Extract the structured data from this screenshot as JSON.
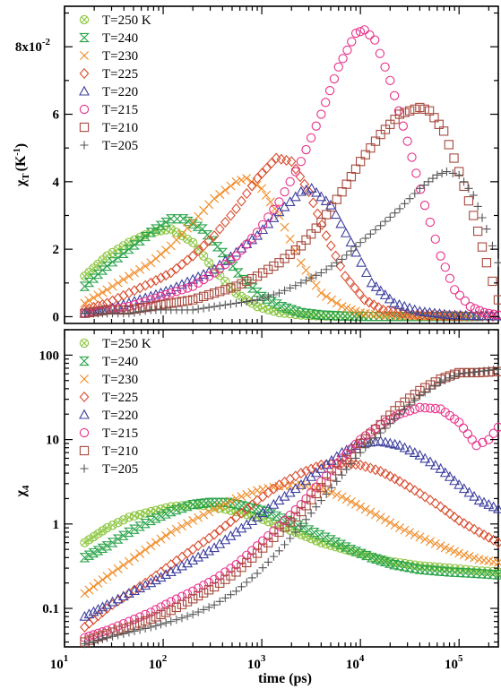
{
  "chart_data": [
    {
      "type": "scatter",
      "title": "",
      "xlabel": "",
      "ylabel_main": "χ",
      "ylabel_sub": "T",
      "ylabel_unit": "(K",
      "ylabel_unit_sup": "-1",
      "ylabel_unit_close": ")",
      "xscale": "log",
      "xlim": [
        10,
        250000
      ],
      "yscale": "linear",
      "ylim": [
        -0.002,
        0.092
      ],
      "x_ticks": [
        {
          "value": 10,
          "base": "10",
          "exp": "1"
        },
        {
          "value": 100,
          "base": "10",
          "exp": "2"
        },
        {
          "value": 1000,
          "base": "10",
          "exp": "3"
        },
        {
          "value": 10000,
          "base": "10",
          "exp": "4"
        },
        {
          "value": 100000,
          "base": "10",
          "exp": "5"
        }
      ],
      "x_tick_labels_shown": false,
      "y_ticks": [
        {
          "value": 0,
          "label": "0"
        },
        {
          "value": 0.02,
          "label": "2"
        },
        {
          "value": 0.04,
          "label": "4"
        },
        {
          "value": 0.06,
          "label": "6"
        },
        {
          "value": 0.08,
          "label": "8x10",
          "sup": "-2"
        }
      ],
      "legend_position": "top-left",
      "series": [
        {
          "name": "T=250 K",
          "marker": "circle-x",
          "color": "#8cc63f",
          "x": [
            16,
            27,
            45,
            75,
            120,
            200,
            330,
            550,
            900,
            1500,
            2500,
            4000,
            7000,
            12000,
            20000
          ],
          "y": [
            0.012,
            0.018,
            0.022,
            0.025,
            0.026,
            0.022,
            0.014,
            0.007,
            0.003,
            0.0012,
            0.0005,
            0.0002,
            0.0001,
            0.0001,
            0.0001
          ]
        },
        {
          "name": "T=240",
          "marker": "hourglass",
          "color": "#2aa44a",
          "x": [
            16,
            27,
            45,
            75,
            120,
            160,
            250,
            400,
            650,
            1000,
            1600,
            2500,
            4000,
            7000,
            12000,
            20000,
            40000,
            80000,
            150000
          ],
          "y": [
            0.009,
            0.015,
            0.02,
            0.025,
            0.029,
            0.029,
            0.026,
            0.019,
            0.011,
            0.006,
            0.003,
            0.0012,
            0.0005,
            0.0002,
            0.0001,
            0.0001,
            0.0001,
            0.0001,
            0.0001
          ]
        },
        {
          "name": "T=230",
          "marker": "x",
          "color": "#f08a24",
          "x": [
            16,
            27,
            45,
            75,
            120,
            200,
            330,
            550,
            700,
            1000,
            1500,
            2500,
            4000,
            6500,
            10000,
            16000,
            30000,
            60000,
            120000
          ],
          "y": [
            0.004,
            0.008,
            0.012,
            0.016,
            0.021,
            0.028,
            0.035,
            0.04,
            0.041,
            0.038,
            0.03,
            0.016,
            0.007,
            0.003,
            0.0012,
            0.0005,
            0.0002,
            0.0001,
            0.0001
          ]
        },
        {
          "name": "T=225",
          "marker": "diamond",
          "color": "#d94c2e",
          "x": [
            16,
            27,
            45,
            75,
            120,
            200,
            330,
            550,
            900,
            1400,
            2000,
            3000,
            4500,
            7000,
            11000,
            17000,
            30000,
            60000,
            120000,
            220000
          ],
          "y": [
            0.002,
            0.004,
            0.007,
            0.01,
            0.013,
            0.018,
            0.024,
            0.032,
            0.041,
            0.047,
            0.046,
            0.037,
            0.024,
            0.012,
            0.005,
            0.002,
            0.0008,
            0.0003,
            0.0001,
            0.0001
          ]
        },
        {
          "name": "T=220",
          "marker": "triangle",
          "color": "#3d3f9e",
          "x": [
            16,
            27,
            45,
            75,
            120,
            200,
            330,
            550,
            900,
            1500,
            2500,
            3200,
            5000,
            8000,
            13000,
            22000,
            40000,
            80000,
            150000,
            240000
          ],
          "y": [
            0.001,
            0.002,
            0.004,
            0.006,
            0.008,
            0.011,
            0.014,
            0.019,
            0.024,
            0.031,
            0.037,
            0.038,
            0.033,
            0.022,
            0.01,
            0.004,
            0.0015,
            0.0005,
            0.0002,
            0.0001
          ]
        },
        {
          "name": "T=215",
          "marker": "circle",
          "color": "#e8308a",
          "x": [
            16,
            27,
            45,
            75,
            120,
            200,
            330,
            550,
            900,
            1500,
            2500,
            4000,
            6000,
            9000,
            11000,
            14000,
            20000,
            30000,
            45000,
            65000,
            90000,
            130000,
            180000,
            250000
          ],
          "y": [
            0.001,
            0.002,
            0.003,
            0.005,
            0.007,
            0.009,
            0.013,
            0.018,
            0.025,
            0.034,
            0.046,
            0.06,
            0.074,
            0.084,
            0.085,
            0.082,
            0.07,
            0.052,
            0.033,
            0.018,
            0.008,
            0.003,
            0.0012,
            0.0005
          ]
        },
        {
          "name": "T=210",
          "marker": "square",
          "color": "#a8493d",
          "x": [
            16,
            27,
            45,
            75,
            120,
            200,
            330,
            550,
            900,
            1500,
            2500,
            4000,
            6500,
            10000,
            16000,
            25000,
            40000,
            50000,
            70000,
            100000,
            140000,
            190000,
            250000
          ],
          "y": [
            0.001,
            0.002,
            0.002,
            0.003,
            0.004,
            0.005,
            0.007,
            0.009,
            0.012,
            0.016,
            0.021,
            0.028,
            0.037,
            0.046,
            0.054,
            0.06,
            0.062,
            0.061,
            0.055,
            0.043,
            0.03,
            0.016,
            0.005
          ]
        },
        {
          "name": "T=205",
          "marker": "plus",
          "color": "#555555",
          "x": [
            16,
            27,
            45,
            75,
            120,
            200,
            330,
            550,
            900,
            1500,
            2500,
            4000,
            6500,
            10000,
            16000,
            25000,
            40000,
            60000,
            75000,
            100000,
            140000,
            190000,
            250000
          ],
          "y": [
            0.001,
            0.001,
            0.001,
            0.002,
            0.002,
            0.002,
            0.003,
            0.004,
            0.005,
            0.007,
            0.01,
            0.013,
            0.017,
            0.022,
            0.027,
            0.032,
            0.038,
            0.042,
            0.043,
            0.042,
            0.036,
            0.026,
            0.016
          ]
        }
      ]
    },
    {
      "type": "scatter",
      "title": "",
      "xlabel": "time (ps)",
      "ylabel_main": "χ",
      "ylabel_sub": "4",
      "xscale": "log",
      "xlim": [
        10,
        250000
      ],
      "yscale": "log",
      "ylim": [
        0.035,
        200
      ],
      "x_ticks": [
        {
          "value": 10,
          "base": "10",
          "exp": "1"
        },
        {
          "value": 100,
          "base": "10",
          "exp": "2"
        },
        {
          "value": 1000,
          "base": "10",
          "exp": "3"
        },
        {
          "value": 10000,
          "base": "10",
          "exp": "4"
        },
        {
          "value": 100000,
          "base": "10",
          "exp": "5"
        }
      ],
      "x_tick_labels_shown": true,
      "y_ticks": [
        {
          "value": 0.1,
          "label": "0.1"
        },
        {
          "value": 1,
          "label": "1"
        },
        {
          "value": 10,
          "label": "10"
        },
        {
          "value": 100,
          "label": "100"
        }
      ],
      "legend_position": "top-left",
      "series": [
        {
          "name": "T=250 K",
          "marker": "circle-x",
          "color": "#8cc63f",
          "x": [
            16,
            27,
            45,
            75,
            120,
            200,
            330,
            550,
            900,
            1500,
            2500,
            4000,
            7000,
            12000,
            20000,
            40000,
            80000,
            150000,
            250000
          ],
          "y": [
            0.6,
            0.9,
            1.2,
            1.4,
            1.6,
            1.7,
            1.6,
            1.4,
            1.2,
            0.95,
            0.75,
            0.6,
            0.5,
            0.42,
            0.36,
            0.32,
            0.3,
            0.28,
            0.27
          ]
        },
        {
          "name": "T=240",
          "marker": "hourglass",
          "color": "#2aa44a",
          "x": [
            16,
            27,
            45,
            75,
            120,
            200,
            300,
            450,
            700,
            1100,
            1800,
            3000,
            5000,
            8000,
            13000,
            22000,
            40000,
            80000,
            150000,
            250000
          ],
          "y": [
            0.4,
            0.55,
            0.8,
            1.1,
            1.4,
            1.7,
            1.8,
            1.8,
            1.6,
            1.4,
            1.1,
            0.85,
            0.65,
            0.5,
            0.4,
            0.33,
            0.29,
            0.27,
            0.26,
            0.25
          ]
        },
        {
          "name": "T=230",
          "marker": "x",
          "color": "#f08a24",
          "x": [
            16,
            27,
            45,
            75,
            120,
            200,
            330,
            550,
            900,
            1500,
            2500,
            4000,
            6500,
            10000,
            16000,
            25000,
            40000,
            65000,
            100000,
            160000,
            250000
          ],
          "y": [
            0.15,
            0.24,
            0.36,
            0.55,
            0.8,
            1.1,
            1.5,
            2.0,
            2.5,
            2.8,
            2.9,
            2.6,
            2.1,
            1.6,
            1.2,
            0.9,
            0.7,
            0.55,
            0.45,
            0.38,
            0.35
          ]
        },
        {
          "name": "T=225",
          "marker": "diamond",
          "color": "#d94c2e",
          "x": [
            16,
            27,
            45,
            75,
            120,
            200,
            330,
            550,
            900,
            1500,
            2500,
            4000,
            6500,
            10000,
            16000,
            25000,
            40000,
            65000,
            100000,
            160000,
            250000
          ],
          "y": [
            0.06,
            0.1,
            0.15,
            0.22,
            0.33,
            0.5,
            0.75,
            1.2,
            1.9,
            2.9,
            4.0,
            5.0,
            5.3,
            5.0,
            4.2,
            3.2,
            2.3,
            1.6,
            1.1,
            0.8,
            0.6
          ]
        },
        {
          "name": "T=220",
          "marker": "triangle",
          "color": "#3d3f9e",
          "x": [
            16,
            27,
            45,
            75,
            120,
            200,
            330,
            550,
            900,
            1500,
            2500,
            4000,
            6500,
            10000,
            16000,
            25000,
            40000,
            65000,
            100000,
            160000,
            250000
          ],
          "y": [
            0.08,
            0.11,
            0.15,
            0.2,
            0.27,
            0.37,
            0.52,
            0.8,
            1.2,
            1.9,
            2.9,
            4.5,
            7.0,
            9.0,
            9.5,
            8.5,
            6.5,
            4.5,
            2.9,
            1.9,
            1.5
          ]
        },
        {
          "name": "T=215",
          "marker": "circle",
          "color": "#e8308a",
          "x": [
            16,
            27,
            45,
            75,
            120,
            200,
            330,
            550,
            900,
            1500,
            2500,
            4000,
            6500,
            10000,
            16000,
            25000,
            40000,
            65000,
            100000,
            150000,
            200000,
            250000
          ],
          "y": [
            0.045,
            0.055,
            0.07,
            0.09,
            0.12,
            0.16,
            0.22,
            0.33,
            0.55,
            0.95,
            1.7,
            3.2,
            6.0,
            10.0,
            15.0,
            20.0,
            24.0,
            23.0,
            16.0,
            8.5,
            10.0,
            14.0
          ]
        },
        {
          "name": "T=210",
          "marker": "square",
          "color": "#a8493d",
          "x": [
            16,
            27,
            45,
            75,
            120,
            200,
            330,
            550,
            900,
            1500,
            2500,
            4000,
            6500,
            10000,
            16000,
            25000,
            40000,
            65000,
            100000,
            160000,
            250000
          ],
          "y": [
            0.04,
            0.05,
            0.06,
            0.075,
            0.095,
            0.13,
            0.18,
            0.27,
            0.45,
            0.8,
            1.4,
            2.7,
            5.0,
            9.0,
            15.0,
            25.0,
            38.0,
            52.0,
            62.0,
            62.0,
            64.0
          ]
        },
        {
          "name": "T=205",
          "marker": "plus",
          "color": "#555555",
          "x": [
            16,
            27,
            45,
            75,
            120,
            200,
            330,
            550,
            900,
            1500,
            2500,
            4000,
            6500,
            10000,
            16000,
            25000,
            40000,
            65000,
            100000,
            160000,
            250000
          ],
          "y": [
            0.038,
            0.045,
            0.052,
            0.06,
            0.07,
            0.085,
            0.11,
            0.16,
            0.26,
            0.48,
            0.95,
            1.9,
            3.8,
            7.0,
            12.0,
            20.0,
            33.0,
            48.0,
            60.0,
            64.0,
            68.0
          ]
        }
      ]
    }
  ]
}
